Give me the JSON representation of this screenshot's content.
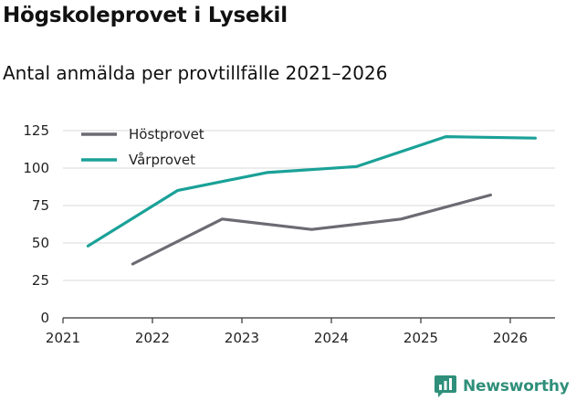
{
  "header": {
    "title": "Högskoleprovet i Lysekil",
    "subtitle": "Antal anmälda per provtillfälle 2021–2026"
  },
  "brand": {
    "name": "Newsworthy",
    "color": "#2f8f7a"
  },
  "chart_data": {
    "type": "line",
    "title": "Högskoleprovet i Lysekil",
    "subtitle": "Antal anmälda per provtillfälle 2021–2026",
    "xlabel": "",
    "ylabel": "",
    "xlim": [
      2021,
      2026.5
    ],
    "ylim": [
      0,
      125
    ],
    "x_ticks": [
      "2021",
      "2022",
      "2023",
      "2024",
      "2025",
      "2026"
    ],
    "y_ticks": [
      0,
      25,
      50,
      75,
      100,
      125
    ],
    "grid": "horizontal",
    "legend": "top-left",
    "series": [
      {
        "name": "Höstprovet",
        "color": "#6b6b73",
        "points": [
          {
            "x": 2021.78,
            "y": 36
          },
          {
            "x": 2022.78,
            "y": 66
          },
          {
            "x": 2023.78,
            "y": 59
          },
          {
            "x": 2024.78,
            "y": 66
          },
          {
            "x": 2025.78,
            "y": 82
          }
        ]
      },
      {
        "name": "Vårprovet",
        "color": "#1aa198",
        "points": [
          {
            "x": 2021.28,
            "y": 48
          },
          {
            "x": 2022.28,
            "y": 85
          },
          {
            "x": 2023.28,
            "y": 97
          },
          {
            "x": 2024.28,
            "y": 101
          },
          {
            "x": 2025.28,
            "y": 121
          },
          {
            "x": 2026.28,
            "y": 120
          }
        ]
      }
    ]
  }
}
